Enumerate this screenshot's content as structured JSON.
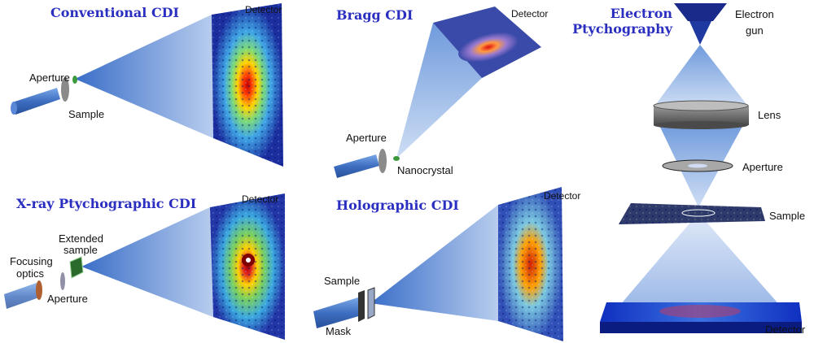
{
  "panels": {
    "conventional": {
      "title": "Conventional CDI",
      "detector": "Detector",
      "aperture": "Aperture",
      "sample": "Sample"
    },
    "bragg": {
      "title": "Bragg CDI",
      "detector": "Detector",
      "aperture": "Aperture",
      "nanocrystal": "Nanocrystal"
    },
    "electron": {
      "title_line1": "Electron",
      "title_line2": "Ptychography",
      "gun_line1": "Electron",
      "gun_line2": "gun",
      "lens": "Lens",
      "aperture": "Aperture",
      "sample": "Sample",
      "detector": "Detector"
    },
    "xray": {
      "title": "X-ray Ptychographic CDI",
      "detector": "Detector",
      "optics_line1": "Focusing",
      "optics_line2": "optics",
      "sample_line1": "Extended",
      "sample_line2": "sample",
      "aperture": "Aperture"
    },
    "holographic": {
      "title": "Holographic CDI",
      "detector": "Detector",
      "sample": "Sample",
      "mask": "Mask"
    }
  },
  "colors": {
    "title": "#2b2fc0",
    "beam": "#4f7fcf",
    "detector_bg": "#1a2a9a"
  }
}
